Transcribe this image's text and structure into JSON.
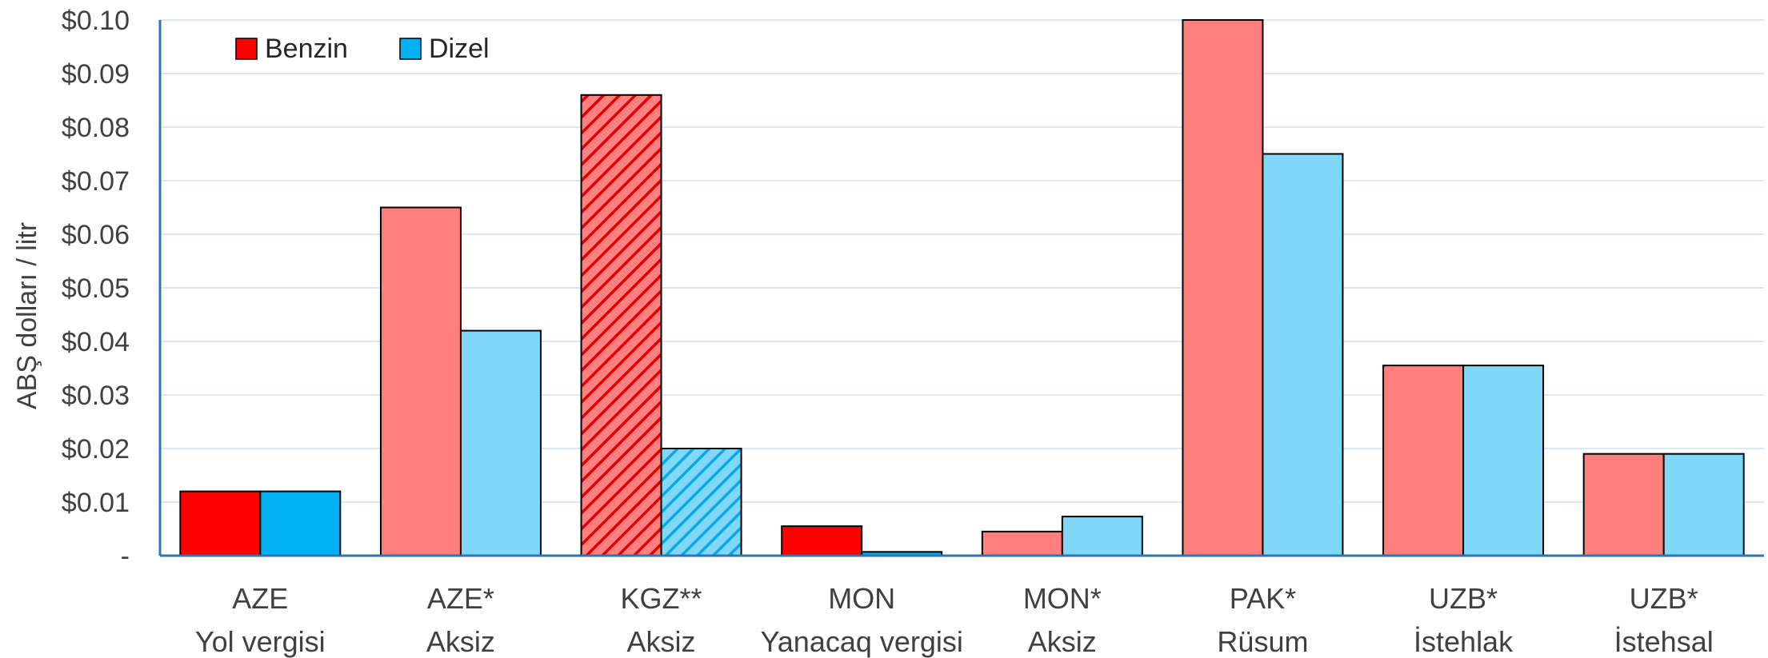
{
  "chart_data": {
    "type": "bar",
    "ylabel": "ABŞ dolları / litr",
    "ylim": [
      0,
      0.1
    ],
    "yticks": [
      "-",
      "$0.01",
      "$0.02",
      "$0.03",
      "$0.04",
      "$0.05",
      "$0.06",
      "$0.07",
      "$0.08",
      "$0.09",
      "$0.10"
    ],
    "grid": true,
    "legend_position": "top-left",
    "categories": [
      {
        "line1": "AZE",
        "line2": "Yol vergisi",
        "style": "solid"
      },
      {
        "line1": "AZE*",
        "line2": "Aksiz",
        "style": "light"
      },
      {
        "line1": "KGZ**",
        "line2": "Aksiz",
        "style": "hatched"
      },
      {
        "line1": "MON",
        "line2": "Yanacaq vergisi",
        "style": "solid"
      },
      {
        "line1": "MON*",
        "line2": "Aksiz",
        "style": "light"
      },
      {
        "line1": "PAK*",
        "line2": "Rüsum",
        "style": "light"
      },
      {
        "line1": "UZB*",
        "line2": "İstehlak",
        "style": "light"
      },
      {
        "line1": "UZB*",
        "line2": "İstehsal",
        "style": "light"
      }
    ],
    "series": [
      {
        "name": "Benzin",
        "color": "#ff0000",
        "light_color": "#ff7f7f",
        "values": [
          0.012,
          0.065,
          0.086,
          0.0055,
          0.0045,
          0.1,
          0.0355,
          0.019
        ]
      },
      {
        "name": "Dizel",
        "color": "#00b0f0",
        "light_color": "#80d8f8",
        "values": [
          0.012,
          0.042,
          0.02,
          0.0007,
          0.0073,
          0.075,
          0.0355,
          0.019
        ]
      }
    ]
  }
}
